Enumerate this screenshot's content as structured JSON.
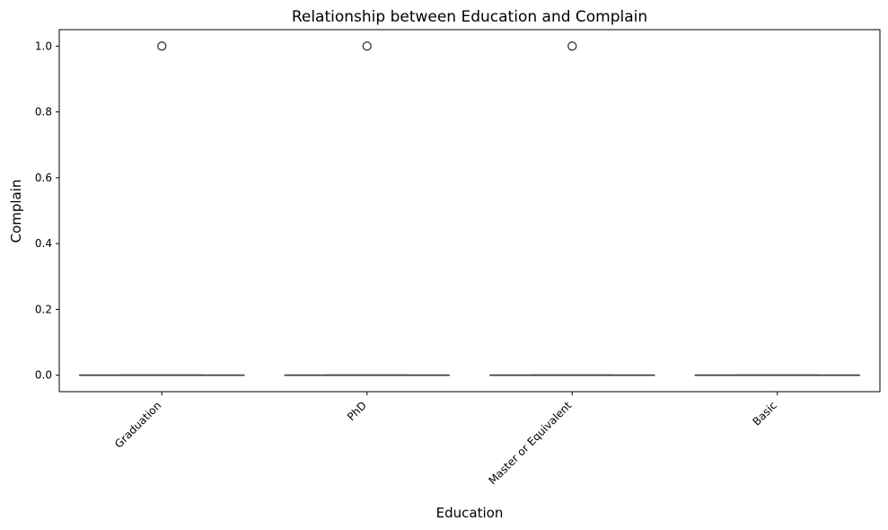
{
  "chart_data": {
    "type": "box",
    "title": "Relationship between Education and Complain",
    "xlabel": "Education",
    "ylabel": "Complain",
    "categories": [
      "Graduation",
      "PhD",
      "Master or Equivalent",
      "Basic"
    ],
    "boxes": [
      {
        "category": "Graduation",
        "q1": 0,
        "median": 0,
        "q3": 0,
        "whisker_low": 0,
        "whisker_high": 0,
        "outliers": [
          1
        ]
      },
      {
        "category": "PhD",
        "q1": 0,
        "median": 0,
        "q3": 0,
        "whisker_low": 0,
        "whisker_high": 0,
        "outliers": [
          1
        ]
      },
      {
        "category": "Master or Equivalent",
        "q1": 0,
        "median": 0,
        "q3": 0,
        "whisker_low": 0,
        "whisker_high": 0,
        "outliers": [
          1
        ]
      },
      {
        "category": "Basic",
        "q1": 0,
        "median": 0,
        "q3": 0,
        "whisker_low": 0,
        "whisker_high": 0,
        "outliers": []
      }
    ],
    "ylim": [
      -0.05,
      1.05
    ],
    "yticks": [
      "0.0",
      "0.2",
      "0.4",
      "0.6",
      "0.8",
      "1.0"
    ],
    "grid": false,
    "colors": {
      "line": "#3a3a3a",
      "axis": "#000000"
    }
  }
}
